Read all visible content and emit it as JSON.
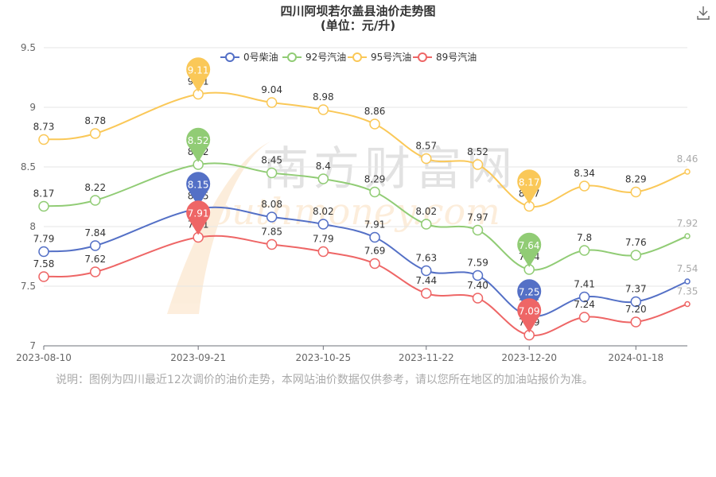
{
  "title": {
    "line1": "四川阿坝若尔盖县油价走势图",
    "line2": "(单位：元/升)"
  },
  "toolbar": {
    "download_icon": "download-icon"
  },
  "watermark": {
    "text_cn": "南方财富网",
    "text_en": "southmoney.com"
  },
  "note": "说明：图例为四川最近12次调价的油价走势，本网站油价数据仅供参考，请以您所在地区的加油站报价为准。",
  "chart_data": {
    "type": "line",
    "x": [
      "2023-08-10",
      "2023-08-24",
      "2023-09-07",
      "2023-09-21",
      "2023-10-11",
      "2023-10-25",
      "2023-11-08",
      "2023-11-22",
      "2023-12-06",
      "2023-12-20",
      "2024-01-04",
      "2024-01-18",
      "2024-02-01"
    ],
    "xtick_labels": [
      "2023-08-10",
      "2023-09-21",
      "2023-10-25",
      "2023-11-22",
      "2023-12-20",
      "2024-01-18"
    ],
    "ylim": [
      7,
      9.5
    ],
    "yticks": [
      "7",
      "7.5",
      "8",
      "8.5",
      "9",
      "9.5"
    ],
    "grid": true,
    "legend_position": "top-center",
    "series": [
      {
        "name": "0号柴油",
        "color": "#5470c6",
        "points": [
          {
            "i": 0,
            "y": 7.79,
            "label": "7.79"
          },
          {
            "i": 1,
            "y": 7.84,
            "label": "7.84"
          },
          {
            "i": 3,
            "y": 8.15,
            "label": "8.15"
          },
          {
            "i": 4,
            "y": 8.08,
            "label": "8.08"
          },
          {
            "i": 5,
            "y": 8.02,
            "label": "8.02"
          },
          {
            "i": 6,
            "y": 7.91,
            "label": "7.91"
          },
          {
            "i": 7,
            "y": 7.63,
            "label": "7.63"
          },
          {
            "i": 8,
            "y": 7.59,
            "label": "7.59"
          },
          {
            "i": 9,
            "y": 7.25,
            "label": "7.25"
          },
          {
            "i": 10,
            "y": 7.41,
            "label": "7.41"
          },
          {
            "i": 11,
            "y": 7.37,
            "label": "7.37"
          },
          {
            "i": 12,
            "y": 7.54,
            "label": "7.54"
          }
        ],
        "max_pin": {
          "i": 3,
          "label": "8.15"
        },
        "min_pin": {
          "i": 9,
          "label": "7.25"
        }
      },
      {
        "name": "92号汽油",
        "color": "#91cc75",
        "points": [
          {
            "i": 0,
            "y": 8.17,
            "label": "8.17"
          },
          {
            "i": 1,
            "y": 8.22,
            "label": "8.22"
          },
          {
            "i": 3,
            "y": 8.52,
            "label": "8.52"
          },
          {
            "i": 4,
            "y": 8.45,
            "label": "8.45"
          },
          {
            "i": 5,
            "y": 8.4,
            "label": "8.4"
          },
          {
            "i": 6,
            "y": 8.29,
            "label": "8.29"
          },
          {
            "i": 7,
            "y": 8.02,
            "label": "8.02"
          },
          {
            "i": 8,
            "y": 7.97,
            "label": "7.97"
          },
          {
            "i": 9,
            "y": 7.64,
            "label": "7.64"
          },
          {
            "i": 10,
            "y": 7.8,
            "label": "7.8"
          },
          {
            "i": 11,
            "y": 7.76,
            "label": "7.76"
          },
          {
            "i": 12,
            "y": 7.92,
            "label": "7.92"
          }
        ],
        "max_pin": {
          "i": 3,
          "label": "8.52"
        },
        "min_pin": {
          "i": 9,
          "label": "7.64"
        }
      },
      {
        "name": "95号汽油",
        "color": "#fac858",
        "points": [
          {
            "i": 0,
            "y": 8.73,
            "label": "8.73"
          },
          {
            "i": 1,
            "y": 8.78,
            "label": "8.78"
          },
          {
            "i": 3,
            "y": 9.11,
            "label": "9.11"
          },
          {
            "i": 4,
            "y": 9.04,
            "label": "9.04"
          },
          {
            "i": 5,
            "y": 8.98,
            "label": "8.98"
          },
          {
            "i": 6,
            "y": 8.86,
            "label": "8.86"
          },
          {
            "i": 7,
            "y": 8.57,
            "label": "8.57"
          },
          {
            "i": 8,
            "y": 8.52,
            "label": "8.52"
          },
          {
            "i": 9,
            "y": 8.17,
            "label": "8.17"
          },
          {
            "i": 10,
            "y": 8.34,
            "label": "8.34"
          },
          {
            "i": 11,
            "y": 8.29,
            "label": "8.29"
          },
          {
            "i": 12,
            "y": 8.46,
            "label": "8.46"
          }
        ],
        "max_pin": {
          "i": 3,
          "label": "9.11"
        },
        "min_pin": {
          "i": 9,
          "label": "8.17"
        }
      },
      {
        "name": "89号汽油",
        "color": "#ee6666",
        "points": [
          {
            "i": 0,
            "y": 7.58,
            "label": "7.58"
          },
          {
            "i": 1,
            "y": 7.62,
            "label": "7.62"
          },
          {
            "i": 3,
            "y": 7.91,
            "label": "7.91"
          },
          {
            "i": 4,
            "y": 7.85,
            "label": "7.85"
          },
          {
            "i": 5,
            "y": 7.79,
            "label": "7.79"
          },
          {
            "i": 6,
            "y": 7.69,
            "label": "7.69"
          },
          {
            "i": 7,
            "y": 7.44,
            "label": "7.44"
          },
          {
            "i": 8,
            "y": 7.4,
            "label": "7.40"
          },
          {
            "i": 9,
            "y": 7.09,
            "label": "7.09"
          },
          {
            "i": 10,
            "y": 7.24,
            "label": "7.24"
          },
          {
            "i": 11,
            "y": 7.2,
            "label": "7.20"
          },
          {
            "i": 12,
            "y": 7.35,
            "label": "7.35"
          }
        ],
        "max_pin": {
          "i": 3,
          "label": "7.91"
        },
        "min_pin": {
          "i": 9,
          "label": "7.09"
        }
      }
    ]
  }
}
